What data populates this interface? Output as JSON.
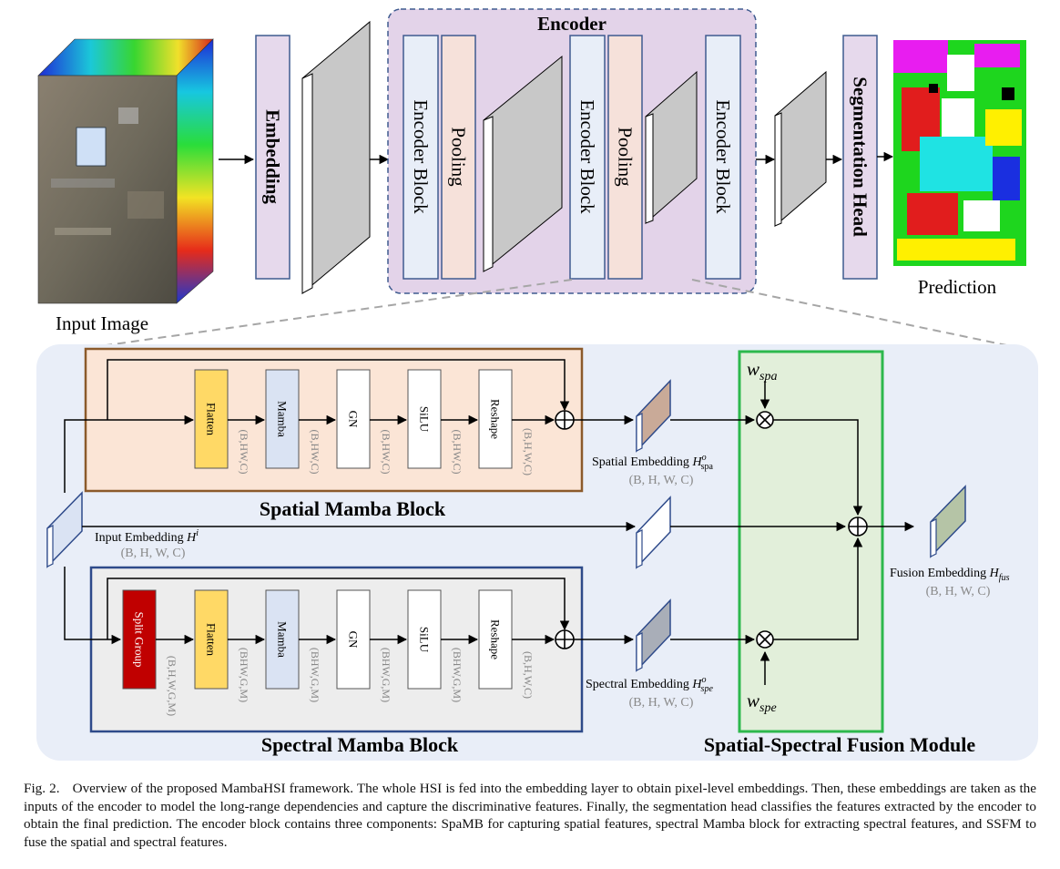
{
  "top": {
    "input_image_label": "Input Image",
    "embedding_label": "Embedding",
    "encoder_title": "Encoder",
    "encoder_block_label": "Encoder Block",
    "pooling_label": "Pooling",
    "segmentation_head_label": "Segmentation Head",
    "prediction_label": "Prediction"
  },
  "spatial": {
    "title": "Spatial Mamba Block",
    "steps": [
      "Flatten",
      "Mamba",
      "GN",
      "SiLU",
      "Reshape"
    ],
    "shapes": [
      "(B,HW,C)",
      "(B,HW,C)",
      "(B,HW,C)",
      "(B,HW,C)",
      "(B,H,W,C)"
    ]
  },
  "spectral": {
    "title": "Spectral Mamba Block",
    "steps": [
      "Split Group",
      "Flatten",
      "Mamba",
      "GN",
      "SiLU",
      "Reshape"
    ],
    "shapes": [
      "(B,H,W,G,M)",
      "(BHW,G,M)",
      "(BHW,G,M)",
      "(BHW,G,M)",
      "(BHW,G,M)",
      "(B,H,W,C)"
    ]
  },
  "embeddings": {
    "input_label": "Input Embedding",
    "input_symbol": "H",
    "input_sup": "i",
    "input_shape": "(B, H, W, C)",
    "spatial_label": "Spatial Embedding",
    "spatial_symbol": "H",
    "spatial_sup": "o",
    "spatial_sub": "spa",
    "spatial_shape": "(B, H, W, C)",
    "spectral_label": "Spectral Embedding",
    "spectral_symbol": "H",
    "spectral_sup": "o",
    "spectral_sub": "spe",
    "spectral_shape": "(B, H, W, C)",
    "fusion_label": "Fusion Embedding",
    "fusion_symbol": "H",
    "fusion_sub": "fus",
    "fusion_shape": "(B, H, W, C)"
  },
  "fusion": {
    "title": "Spatial-Spectral Fusion Module",
    "w_spa_symbol": "w",
    "w_spa_sub": "spa",
    "w_spe_symbol": "w",
    "w_spe_sub": "spe"
  },
  "caption": {
    "fig_label": "Fig. 2.",
    "text": "Overview of the proposed MambaHSI framework. The whole HSI is fed into the embedding layer to obtain pixel-level embeddings. Then, these embeddings are taken as the inputs of the encoder to model the long-range dependencies and capture the discriminative features. Finally, the segmentation head classifies the features extracted by the encoder to obtain the final prediction. The encoder block contains three components: SpaMB for capturing spatial features, spectral Mamba block for extracting spectral features, and SSFM to fuse the spatial and spectral features."
  },
  "colors": {
    "embedding_fill": "#e6d9ec",
    "encoder_region": "#e3d3e9",
    "encoder_block_fill": "#e8eef8",
    "pooling_fill": "#f6e1da",
    "bottom_panel": "#e9eef8",
    "spatial_block_fill": "#fbe5d6",
    "spatial_block_border": "#8b5a2b",
    "spectral_block_fill": "#ededed",
    "spectral_block_border": "#2e4a8a",
    "flatten_fill": "#ffd966",
    "mamba_fill": "#dae3f3",
    "split_group_fill": "#c00000",
    "fusion_fill": "#e2efda",
    "fusion_border": "#2db84d",
    "spatial_embedding_color": "#c9aa98",
    "spectral_embedding_color": "#a9aeb8",
    "fusion_embedding_color": "#b5c4a6"
  }
}
